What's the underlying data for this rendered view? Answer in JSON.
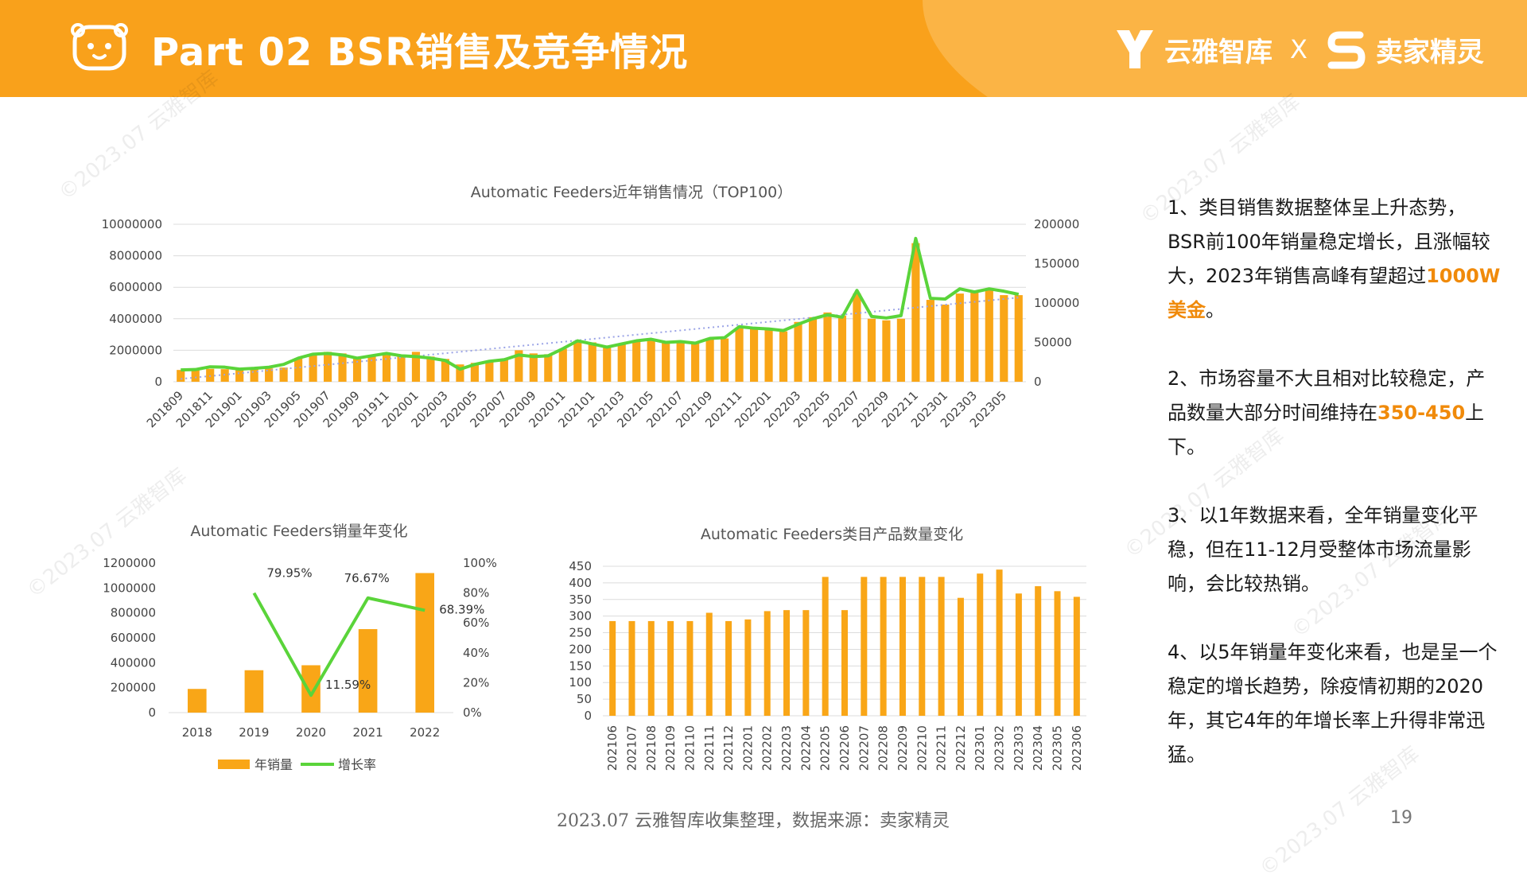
{
  "header": {
    "title": "Part 02  BSR销售及竞争情况",
    "brand_left": "云雅智库",
    "brand_sep": "X",
    "brand_right": "卖家精灵"
  },
  "watermark": "©2023.07 云雅智库",
  "colors": {
    "header": "#f9a11b",
    "bar": "#f9a617",
    "line": "#5ad43a",
    "trend": "#9aa3e6",
    "highlight": "#f08a0a"
  },
  "notes": [
    {
      "pre": "1、类目销售数据整体呈上升态势，BSR前100年销量稳定增长，且涨幅较大，2023年销售高峰有望超过",
      "hl": "1000W美金",
      "post": "。"
    },
    {
      "pre": "2、市场容量不大且相对比较稳定，产品数量大部分时间维持在",
      "hl": "350-450",
      "post": "上下。"
    },
    {
      "pre": "3、以1年数据来看，全年销量变化平稳，但在11-12月受整体市场流量影响，会比较热销。",
      "hl": "",
      "post": ""
    },
    {
      "pre": "4、以5年销量年变化来看，也是呈一个稳定的增长趋势，除疫情初期的2020年，其它4年的年增长率上升得非常迅猛。",
      "hl": "",
      "post": ""
    }
  ],
  "footer": {
    "source": "2023.07 云雅智库收集整理，数据来源：卖家精灵",
    "page": "19"
  },
  "chart_data": [
    {
      "type": "bar+line",
      "title": "Automatic Feeders近年销售情况（TOP100）",
      "x": [
        "201809",
        "201810",
        "201811",
        "201812",
        "201901",
        "201902",
        "201903",
        "201904",
        "201905",
        "201906",
        "201907",
        "201908",
        "201909",
        "201910",
        "201911",
        "201912",
        "202001",
        "202002",
        "202003",
        "202004",
        "202005",
        "202006",
        "202007",
        "202008",
        "202009",
        "202010",
        "202011",
        "202012",
        "202101",
        "202102",
        "202103",
        "202104",
        "202105",
        "202106",
        "202107",
        "202108",
        "202109",
        "202110",
        "202111",
        "202112",
        "202201",
        "202202",
        "202203",
        "202204",
        "202205",
        "202206",
        "202207",
        "202208",
        "202209",
        "202210",
        "202211",
        "202212",
        "202301",
        "202302",
        "202303",
        "202304",
        "202305",
        "202306"
      ],
      "x_tick_labels": [
        "201809",
        "201811",
        "201901",
        "201903",
        "201905",
        "201907",
        "201909",
        "201911",
        "202001",
        "202003",
        "202005",
        "202007",
        "202009",
        "202011",
        "202101",
        "202103",
        "202105",
        "202107",
        "202109",
        "202111",
        "202201",
        "202203",
        "202205",
        "202207",
        "202209",
        "202211",
        "202301",
        "202303",
        "202305"
      ],
      "bars": [
        750000,
        780000,
        820000,
        800000,
        780000,
        800000,
        850000,
        900000,
        1500000,
        1700000,
        1900000,
        1800000,
        1550000,
        1650000,
        1800000,
        1700000,
        1900000,
        1600000,
        1450000,
        1100000,
        1200000,
        1300000,
        1450000,
        2000000,
        1800000,
        1750000,
        2100000,
        2600000,
        2500000,
        2300000,
        2400000,
        2600000,
        2700000,
        2500000,
        2600000,
        2450000,
        2700000,
        2750000,
        3400000,
        3400000,
        3300000,
        3200000,
        3800000,
        4100000,
        4400000,
        4200000,
        5600000,
        4000000,
        3900000,
        4000000,
        8800000,
        5200000,
        4900000,
        5600000,
        5700000,
        5900000,
        5500000,
        5500000
      ],
      "line": [
        15000,
        15500,
        19000,
        18500,
        16000,
        17000,
        18500,
        22000,
        30000,
        35000,
        36000,
        34000,
        30000,
        33000,
        36000,
        33000,
        32000,
        30000,
        27000,
        16000,
        22000,
        26000,
        28000,
        34000,
        32000,
        33000,
        42000,
        52000,
        48000,
        44000,
        48000,
        52000,
        54000,
        50000,
        51000,
        49000,
        55000,
        56000,
        70000,
        68000,
        67000,
        65000,
        73000,
        80000,
        85000,
        82000,
        116000,
        83000,
        81000,
        84000,
        182000,
        106000,
        105000,
        118000,
        114000,
        118000,
        115000,
        111000
      ],
      "left_axis": {
        "ticks": [
          "0",
          "2000000",
          "4000000",
          "6000000",
          "8000000",
          "10000000"
        ],
        "ylim": [
          0,
          10000000
        ]
      },
      "right_axis": {
        "ticks": [
          "0",
          "50000",
          "100000",
          "150000",
          "200000"
        ],
        "ylim": [
          0,
          200000
        ]
      },
      "trendline": true
    },
    {
      "type": "bar+line",
      "title": "Automatic Feeders销量年变化",
      "categories": [
        "2018",
        "2019",
        "2020",
        "2021",
        "2022"
      ],
      "series": [
        {
          "name": "年销量",
          "values": [
            190000,
            340000,
            380000,
            670000,
            1120000
          ]
        },
        {
          "name": "增长率",
          "values": [
            null,
            79.95,
            11.59,
            76.67,
            68.39
          ],
          "labels": [
            "",
            "79.95%",
            "11.59%",
            "76.67%",
            "68.39%"
          ]
        }
      ],
      "left_axis": {
        "ticks": [
          "0",
          "200000",
          "400000",
          "600000",
          "800000",
          "1000000",
          "1200000"
        ],
        "ylim": [
          0,
          1200000
        ]
      },
      "right_axis": {
        "ticks": [
          "0%",
          "20%",
          "40%",
          "60%",
          "80%",
          "100%"
        ],
        "ylim": [
          0,
          100
        ]
      },
      "legend": "bottom"
    },
    {
      "type": "bar",
      "title": "Automatic Feeders类目产品数量变化",
      "categories": [
        "202106",
        "202107",
        "202108",
        "202109",
        "202110",
        "202111",
        "202112",
        "202201",
        "202202",
        "202203",
        "202204",
        "202205",
        "202206",
        "202207",
        "202208",
        "202209",
        "202210",
        "202211",
        "202212",
        "202301",
        "202302",
        "202303",
        "202304",
        "202305",
        "202306"
      ],
      "values": [
        285,
        285,
        285,
        285,
        285,
        310,
        285,
        290,
        315,
        318,
        318,
        418,
        318,
        418,
        418,
        418,
        418,
        418,
        355,
        428,
        440,
        368,
        390,
        375,
        358
      ],
      "axis": {
        "ticks": [
          "0",
          "50",
          "100",
          "150",
          "200",
          "250",
          "300",
          "350",
          "400",
          "450"
        ],
        "ylim": [
          0,
          450
        ]
      }
    }
  ]
}
